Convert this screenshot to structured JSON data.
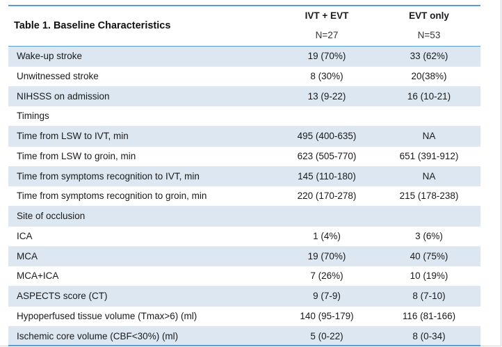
{
  "table": {
    "title": "Table 1. Baseline Characteristics",
    "columns": [
      {
        "label": "IVT + EVT",
        "n": "N=27"
      },
      {
        "label": "EVT only",
        "n": "N=53"
      }
    ],
    "rows": [
      {
        "label": "Wake-up stroke",
        "ivt_evt": "19 (70%)",
        "evt_only": "33 (62%)"
      },
      {
        "label": "Unwitnessed stroke",
        "ivt_evt": "8 (30%)",
        "evt_only": "20(38%)"
      },
      {
        "label": "NIHSSS on admission",
        "ivt_evt": "13 (9-22)",
        "evt_only": "16 (10-21)"
      },
      {
        "label": "Timings",
        "ivt_evt": "",
        "evt_only": ""
      },
      {
        "label": "Time from LSW to IVT, min",
        "ivt_evt": "495 (400-635)",
        "evt_only": "NA"
      },
      {
        "label": "Time from LSW to groin, min",
        "ivt_evt": "623 (505-770)",
        "evt_only": "651 (391-912)"
      },
      {
        "label": "Time from symptoms recognition to IVT, min",
        "ivt_evt": "145 (110-180)",
        "evt_only": "NA"
      },
      {
        "label": "Time from symptoms recognition to groin, min",
        "ivt_evt": "220 (170-278)",
        "evt_only": "215 (178-238)"
      },
      {
        "label": "Site of occlusion",
        "ivt_evt": "",
        "evt_only": ""
      },
      {
        "label": "ICA",
        "ivt_evt": "1 (4%)",
        "evt_only": "3 (6%)"
      },
      {
        "label": "MCA",
        "ivt_evt": "19 (70%)",
        "evt_only": "40 (75%)"
      },
      {
        "label": "MCA+ICA",
        "ivt_evt": "7 (26%)",
        "evt_only": "10 (19%)"
      },
      {
        "label": "ASPECTS score (CT)",
        "ivt_evt": "9 (7-9)",
        "evt_only": "8 (7-10)"
      },
      {
        "label": "Hypoperfused tissue volume (Tmax>6) (ml)",
        "ivt_evt": "140 (95-179)",
        "evt_only": "116 (81-166)"
      },
      {
        "label": "Ischemic core volume (CBF<30%) (ml)",
        "ivt_evt": "5 (0-22)",
        "evt_only": "8 (0-34)"
      }
    ]
  },
  "colors": {
    "accent_rule": "#5b9bd5",
    "shaded_row": "#dde7f2"
  }
}
